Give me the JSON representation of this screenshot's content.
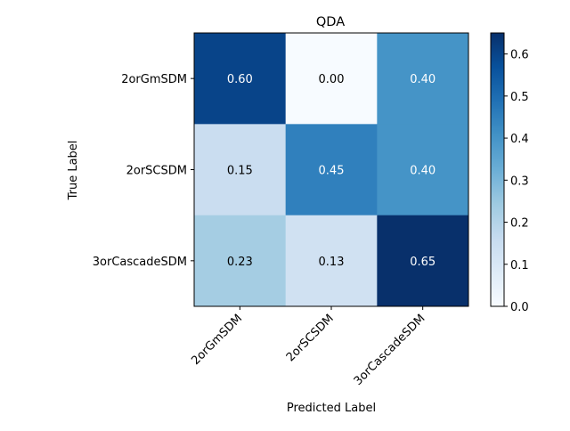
{
  "chart_data": {
    "type": "heatmap",
    "title": "QDA",
    "xlabel": "Predicted Label",
    "ylabel": "True Label",
    "x_categories": [
      "2orGmSDM",
      "2orSCSDM",
      "3orCascadeSDM"
    ],
    "y_categories": [
      "2orGmSDM",
      "2orSCSDM",
      "3orCascadeSDM"
    ],
    "values": [
      [
        0.6,
        0.0,
        0.4
      ],
      [
        0.15,
        0.45,
        0.4
      ],
      [
        0.23,
        0.13,
        0.65
      ]
    ],
    "value_labels": [
      [
        "0.60",
        "0.00",
        "0.40"
      ],
      [
        "0.15",
        "0.45",
        "0.40"
      ],
      [
        "0.23",
        "0.13",
        "0.65"
      ]
    ],
    "colormap": "Blues",
    "vmin": 0.0,
    "vmax": 0.65,
    "colorbar_ticks": [
      0.0,
      0.1,
      0.2,
      0.3,
      0.4,
      0.5,
      0.6
    ],
    "colorbar_tick_labels": [
      "0.0",
      "0.1",
      "0.2",
      "0.3",
      "0.4",
      "0.5",
      "0.6"
    ],
    "x_tick_rotation": "45 degrees",
    "text_color_dark": "#000000",
    "text_color_light": "#ffffff"
  }
}
